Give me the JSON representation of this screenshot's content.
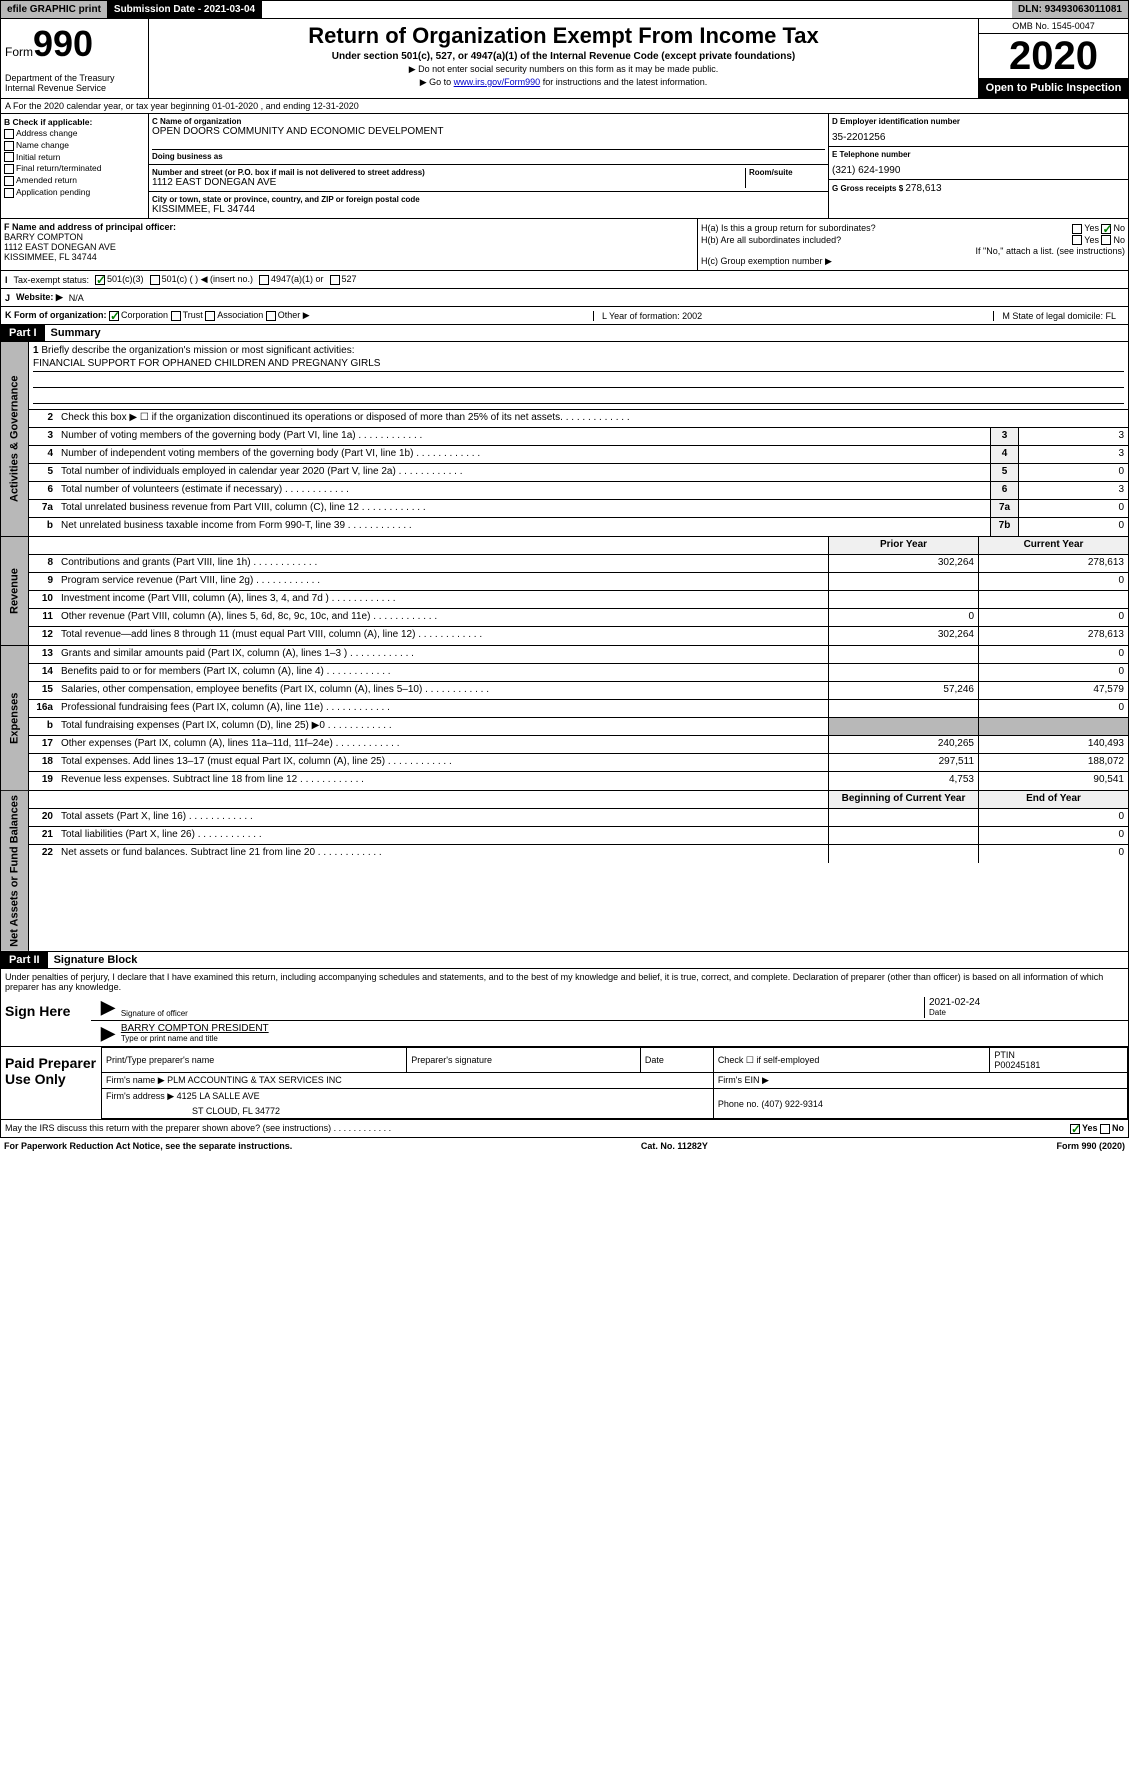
{
  "topbar": {
    "efile": "efile GRAPHIC print",
    "subdate_label": "Submission Date - 2021-03-04",
    "dln": "DLN: 93493063011081"
  },
  "header": {
    "form": "Form",
    "form_num": "990",
    "dept": "Department of the Treasury\nInternal Revenue Service",
    "title": "Return of Organization Exempt From Income Tax",
    "sub": "Under section 501(c), 527, or 4947(a)(1) of the Internal Revenue Code (except private foundations)",
    "note1": "▶ Do not enter social security numbers on this form as it may be made public.",
    "note2_pre": "▶ Go to ",
    "note2_link": "www.irs.gov/Form990",
    "note2_post": " for instructions and the latest information.",
    "omb": "OMB No. 1545-0047",
    "year": "2020",
    "open": "Open to Public Inspection"
  },
  "row_a": "A For the 2020 calendar year, or tax year beginning 01-01-2020    , and ending 12-31-2020",
  "col_b": {
    "title": "B Check if applicable:",
    "opts": [
      "Address change",
      "Name change",
      "Initial return",
      "Final return/terminated",
      "Amended return",
      "Application pending"
    ]
  },
  "col_c": {
    "name_label": "C Name of organization",
    "name": "OPEN DOORS COMMUNITY AND ECONOMIC DEVELPOMENT",
    "dba_label": "Doing business as",
    "addr_label": "Number and street (or P.O. box if mail is not delivered to street address)",
    "room_label": "Room/suite",
    "addr": "1112 EAST DONEGAN AVE",
    "city_label": "City or town, state or province, country, and ZIP or foreign postal code",
    "city": "KISSIMMEE, FL  34744"
  },
  "col_d": {
    "ein_label": "D Employer identification number",
    "ein": "35-2201256",
    "phone_label": "E Telephone number",
    "phone": "(321) 624-1990",
    "gross_label": "G Gross receipts $ ",
    "gross": "278,613"
  },
  "col_f": {
    "label": "F  Name and address of principal officer:",
    "name": "BARRY COMPTON",
    "addr1": "1112 EAST DONEGAN AVE",
    "addr2": "KISSIMMEE, FL  34744"
  },
  "col_h": {
    "ha": "H(a)  Is this a group return for subordinates?",
    "hb": "H(b)  Are all subordinates included?",
    "hb_note": "If \"No,\" attach a list. (see instructions)",
    "hc": "H(c)  Group exemption number ▶",
    "yes": "Yes",
    "no": "No"
  },
  "row_i": {
    "label": "Tax-exempt status:",
    "o1": "501(c)(3)",
    "o2": "501(c) (  ) ◀ (insert no.)",
    "o3": "4947(a)(1) or",
    "o4": "527"
  },
  "row_j": {
    "label": "Website: ▶",
    "val": "N/A"
  },
  "row_k": {
    "label": "K Form of organization:",
    "o1": "Corporation",
    "o2": "Trust",
    "o3": "Association",
    "o4": "Other ▶",
    "l": "L Year of formation: 2002",
    "m": "M State of legal domicile: FL"
  },
  "part1": {
    "hdr": "Part I",
    "title": "Summary"
  },
  "mission": {
    "num": "1",
    "label": "Briefly describe the organization's mission or most significant activities:",
    "text": "FINANCIAL SUPPORT FOR OPHANED CHILDREN AND PREGNANY GIRLS"
  },
  "lines_gov": [
    {
      "n": "2",
      "t": "Check this box ▶ ☐  if the organization discontinued its operations or disposed of more than 25% of its net assets.",
      "box": "",
      "v": ""
    },
    {
      "n": "3",
      "t": "Number of voting members of the governing body (Part VI, line 1a)",
      "box": "3",
      "v": "3"
    },
    {
      "n": "4",
      "t": "Number of independent voting members of the governing body (Part VI, line 1b)",
      "box": "4",
      "v": "3"
    },
    {
      "n": "5",
      "t": "Total number of individuals employed in calendar year 2020 (Part V, line 2a)",
      "box": "5",
      "v": "0"
    },
    {
      "n": "6",
      "t": "Total number of volunteers (estimate if necessary)",
      "box": "6",
      "v": "3"
    },
    {
      "n": "7a",
      "t": "Total unrelated business revenue from Part VIII, column (C), line 12",
      "box": "7a",
      "v": "0"
    },
    {
      "n": "b",
      "t": "Net unrelated business taxable income from Form 990-T, line 39",
      "box": "7b",
      "v": "0"
    }
  ],
  "rev_hdr": {
    "prior": "Prior Year",
    "curr": "Current Year"
  },
  "lines_rev": [
    {
      "n": "8",
      "t": "Contributions and grants (Part VIII, line 1h)",
      "p": "302,264",
      "c": "278,613"
    },
    {
      "n": "9",
      "t": "Program service revenue (Part VIII, line 2g)",
      "p": "",
      "c": "0"
    },
    {
      "n": "10",
      "t": "Investment income (Part VIII, column (A), lines 3, 4, and 7d )",
      "p": "",
      "c": ""
    },
    {
      "n": "11",
      "t": "Other revenue (Part VIII, column (A), lines 5, 6d, 8c, 9c, 10c, and 11e)",
      "p": "0",
      "c": "0"
    },
    {
      "n": "12",
      "t": "Total revenue—add lines 8 through 11 (must equal Part VIII, column (A), line 12)",
      "p": "302,264",
      "c": "278,613"
    }
  ],
  "lines_exp": [
    {
      "n": "13",
      "t": "Grants and similar amounts paid (Part IX, column (A), lines 1–3 )",
      "p": "",
      "c": "0"
    },
    {
      "n": "14",
      "t": "Benefits paid to or for members (Part IX, column (A), line 4)",
      "p": "",
      "c": "0"
    },
    {
      "n": "15",
      "t": "Salaries, other compensation, employee benefits (Part IX, column (A), lines 5–10)",
      "p": "57,246",
      "c": "47,579"
    },
    {
      "n": "16a",
      "t": "Professional fundraising fees (Part IX, column (A), line 11e)",
      "p": "",
      "c": "0"
    },
    {
      "n": "b",
      "t": "Total fundraising expenses (Part IX, column (D), line 25) ▶0",
      "p": "—",
      "c": "—"
    },
    {
      "n": "17",
      "t": "Other expenses (Part IX, column (A), lines 11a–11d, 11f–24e)",
      "p": "240,265",
      "c": "140,493"
    },
    {
      "n": "18",
      "t": "Total expenses. Add lines 13–17 (must equal Part IX, column (A), line 25)",
      "p": "297,511",
      "c": "188,072"
    },
    {
      "n": "19",
      "t": "Revenue less expenses. Subtract line 18 from line 12",
      "p": "4,753",
      "c": "90,541"
    }
  ],
  "net_hdr": {
    "beg": "Beginning of Current Year",
    "end": "End of Year"
  },
  "lines_net": [
    {
      "n": "20",
      "t": "Total assets (Part X, line 16)",
      "p": "",
      "c": "0"
    },
    {
      "n": "21",
      "t": "Total liabilities (Part X, line 26)",
      "p": "",
      "c": "0"
    },
    {
      "n": "22",
      "t": "Net assets or fund balances. Subtract line 21 from line 20",
      "p": "",
      "c": "0"
    }
  ],
  "vtabs": {
    "gov": "Activities & Governance",
    "rev": "Revenue",
    "exp": "Expenses",
    "net": "Net Assets or Fund Balances"
  },
  "part2": {
    "hdr": "Part II",
    "title": "Signature Block"
  },
  "perjury": "Under penalties of perjury, I declare that I have examined this return, including accompanying schedules and statements, and to the best of my knowledge and belief, it is true, correct, and complete. Declaration of preparer (other than officer) is based on all information of which preparer has any knowledge.",
  "sign": {
    "here": "Sign Here",
    "sig_label": "Signature of officer",
    "date": "2021-02-24",
    "date_label": "Date",
    "name": "BARRY COMPTON  PRESIDENT",
    "name_label": "Type or print name and title"
  },
  "prep": {
    "label": "Paid Preparer Use Only",
    "h1": "Print/Type preparer's name",
    "h2": "Preparer's signature",
    "h3": "Date",
    "h4_pre": "Check ☐ if self-employed",
    "h5": "PTIN",
    "ptin": "P00245181",
    "firm_label": "Firm's name      ▶",
    "firm": "PLM ACCOUNTING & TAX SERVICES INC",
    "ein_label": "Firm's EIN ▶",
    "addr_label": "Firm's address ▶",
    "addr": "4125 LA SALLE AVE",
    "addr2": "ST CLOUD, FL  34772",
    "phone_label": "Phone no. ",
    "phone": "(407) 922-9314"
  },
  "discuss": {
    "q": "May the IRS discuss this return with the preparer shown above? (see instructions)",
    "yes": "Yes",
    "no": "No"
  },
  "footer": {
    "l": "For Paperwork Reduction Act Notice, see the separate instructions.",
    "c": "Cat. No. 11282Y",
    "r": "Form 990 (2020)"
  }
}
